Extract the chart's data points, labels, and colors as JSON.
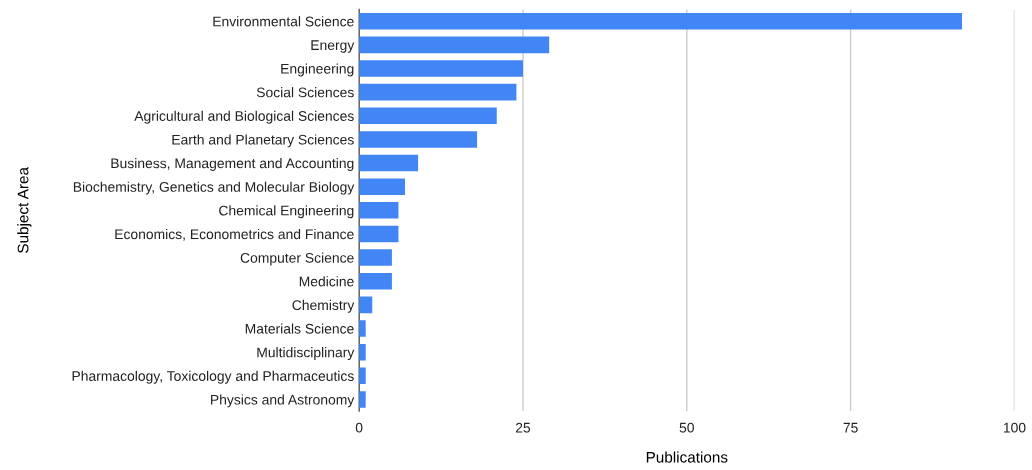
{
  "chart_data": {
    "type": "bar",
    "orientation": "horizontal",
    "xlabel": "Publications",
    "ylabel": "Subject Area",
    "categories": [
      "Environmental Science",
      "Energy",
      "Engineering",
      "Social Sciences",
      "Agricultural and Biological Sciences",
      "Earth and Planetary Sciences",
      "Business, Management and Accounting",
      "Biochemistry, Genetics and Molecular Biology",
      "Chemical Engineering",
      "Economics, Econometrics and Finance",
      "Computer Science",
      "Medicine",
      "Chemistry",
      "Materials Science",
      "Multidisciplinary",
      "Pharmacology, Toxicology and Pharmaceutics",
      "Physics and Astronomy"
    ],
    "values": [
      92,
      29,
      25,
      24,
      21,
      18,
      9,
      7,
      6,
      6,
      5,
      5,
      2,
      1,
      1,
      1,
      1
    ],
    "color": "#4285f4",
    "xlim": [
      0,
      100
    ],
    "xticks": [
      0,
      25,
      50,
      75,
      100
    ],
    "grid": "x"
  }
}
